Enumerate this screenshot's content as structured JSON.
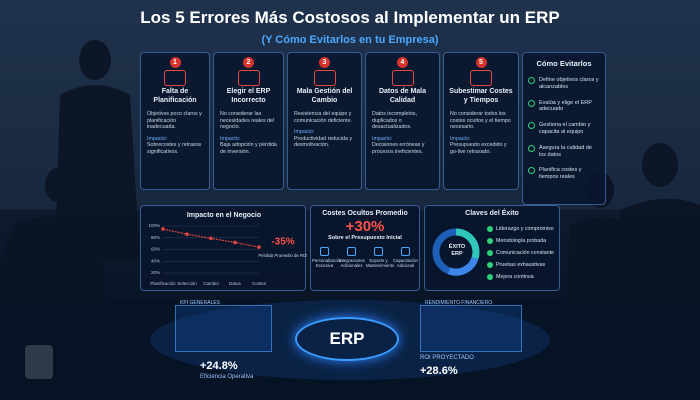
{
  "header": {
    "title": "Los 5 Errores Más Costosos al Implementar un ERP",
    "subtitle": "(Y Cómo Evitarlos en tu Empresa)"
  },
  "errors": [
    {
      "number": "1",
      "title": "Falta de Planificación",
      "description": "Objetivos poco claros y planificación inadecuada.",
      "impact_label": "Impacto:",
      "impact": "Sobrecostes y retrasos significativos."
    },
    {
      "number": "2",
      "title": "Elegir el ERP Incorrecto",
      "description": "No considerar las necesidades reales del negocio.",
      "impact_label": "Impacto:",
      "impact": "Baja adopción y pérdida de inversión."
    },
    {
      "number": "3",
      "title": "Mala Gestión del Cambio",
      "description": "Resistencia del equipo y comunicación deficiente.",
      "impact_label": "Impacto:",
      "impact": "Productividad reducida y desmotivación."
    },
    {
      "number": "4",
      "title": "Datos de Mala Calidad",
      "description": "Datos incompletos, duplicados o desactualizados.",
      "impact_label": "Impacto:",
      "impact": "Decisiones erróneas y procesos ineficientes."
    },
    {
      "number": "5",
      "title": "Subestimar Costes y Tiempos",
      "description": "No considerar todos los costes ocultos y el tiempo necesario.",
      "impact_label": "Impacto:",
      "impact": "Presupuesto excedido y go-live retrasado."
    }
  ],
  "avoid": {
    "title": "Cómo Evitarlos",
    "items": [
      "Define objetivos claros y alcanzables",
      "Evalúa y elige el ERP adecuado",
      "Gestiona el cambio y capacita al equipo",
      "Asegura la calidad de los datos",
      "Planifica costes y tiempos reales"
    ]
  },
  "chart_data": {
    "type": "line",
    "title": "Impacto en el Negocio",
    "categories": [
      "Planificación",
      "Selección",
      "Cambio",
      "Datos",
      "Costes"
    ],
    "values": [
      95,
      86,
      79,
      72,
      64
    ],
    "color": "#e0463c",
    "ylim": [
      15,
      100
    ],
    "yticks": [
      {
        "value": 20,
        "label": "20%"
      },
      {
        "value": 40,
        "label": "40%"
      },
      {
        "value": 60,
        "label": "60%"
      },
      {
        "value": 80,
        "label": "80%"
      },
      {
        "value": 100,
        "label": "100%"
      }
    ],
    "annotation": "-35%",
    "annotation_note": "Pérdida Promedio de ROI"
  },
  "hidden_costs": {
    "title": "Costes Ocultos Promedio",
    "value": "+30%",
    "note": "Sobre el Presupuesto Inicial",
    "items": [
      "Personalización Excesiva",
      "Integraciones Adicionales",
      "Soporte y Mantenimiento",
      "Capacitación Adicional"
    ]
  },
  "success": {
    "title": "Claves del Éxito",
    "center": "ÉXITO ERP",
    "items": [
      "Liderazgo y compromiso",
      "Metodología probada",
      "Comunicación constante",
      "Pruebas exhaustivas",
      "Mejora continua"
    ]
  },
  "hologram": {
    "left_title": "KPI GENERALES",
    "right_title": "RENDIMIENTO FINANCIERO",
    "center": "ERP",
    "left_value": "+24.8%",
    "left_label": "Eficiencia Operativa",
    "right_label": "ROI PROYECTADO",
    "right_value": "+28.6%"
  }
}
